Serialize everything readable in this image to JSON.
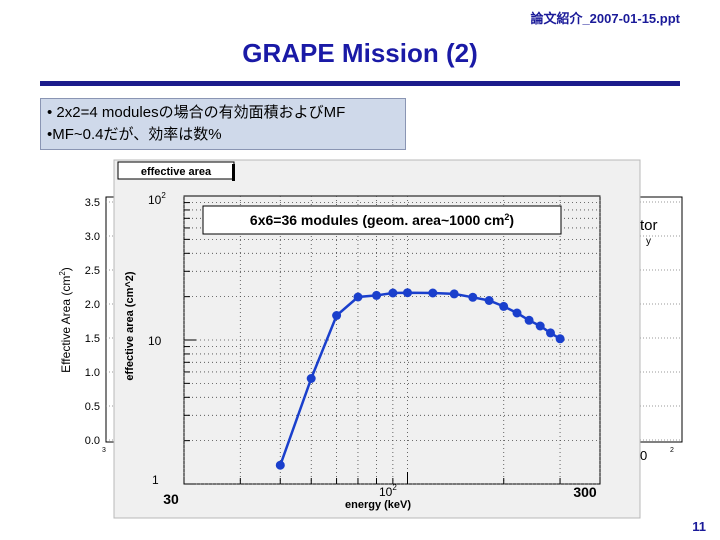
{
  "header": {
    "file_label": "論文紹介_2007-01-15.ppt"
  },
  "slide": {
    "title": "GRAPE Mission (2)",
    "page_number": "11"
  },
  "bullets": [
    "• 2x2=4 modulesの場合の有効面積およびMF",
    "•MF~0.4だが、効率は数%"
  ],
  "back_plot": {
    "ylabel": "Effective Area (cm",
    "ylabel_sup": "2",
    "ylabel_end": ")",
    "yticks": [
      "3.5",
      "3.0",
      "2.5",
      "2.0",
      "1.5",
      "1.0",
      "0.5",
      "0.0"
    ],
    "partial_text_right_1": "tor",
    "partial_text_right_2": "y",
    "partial_tick_bottom": "0",
    "partial_tick_corner": "2",
    "partial_tick_left": "3"
  },
  "colors": {
    "accent": "#1a1aa6",
    "series": "#1a3fcc",
    "panel": "#f0f0f0"
  },
  "chart_data": {
    "type": "line",
    "panel_title": "effective area",
    "annotation": {
      "main": "6x6=36 modules (geom. area~1000 cm",
      "sup": "2",
      "end": ")"
    },
    "xlabel": "energy (keV)",
    "ylabel": "effective area (cm^2)",
    "x_scale": "log",
    "y_scale": "log",
    "xlim": [
      20,
      400
    ],
    "ylim": [
      1,
      100
    ],
    "ytick_labels": {
      "major_top": "10",
      "major_top_sup": "2",
      "mid": "10",
      "bottom": "1"
    },
    "xtick_labels": {
      "mid": "10",
      "mid_sup": "2"
    },
    "extra_labels": {
      "left": "30",
      "right": "300"
    },
    "series": [
      {
        "x": [
          40,
          50,
          60,
          70,
          80,
          90,
          100,
          120,
          140,
          160,
          180,
          200,
          220,
          240,
          260,
          280,
          300
        ],
        "y": [
          1.35,
          5.4,
          14.8,
          19.9,
          20.4,
          21.2,
          21.3,
          21.2,
          20.9,
          19.8,
          18.8,
          17.1,
          15.4,
          13.7,
          12.5,
          11.2,
          10.2
        ]
      }
    ]
  }
}
